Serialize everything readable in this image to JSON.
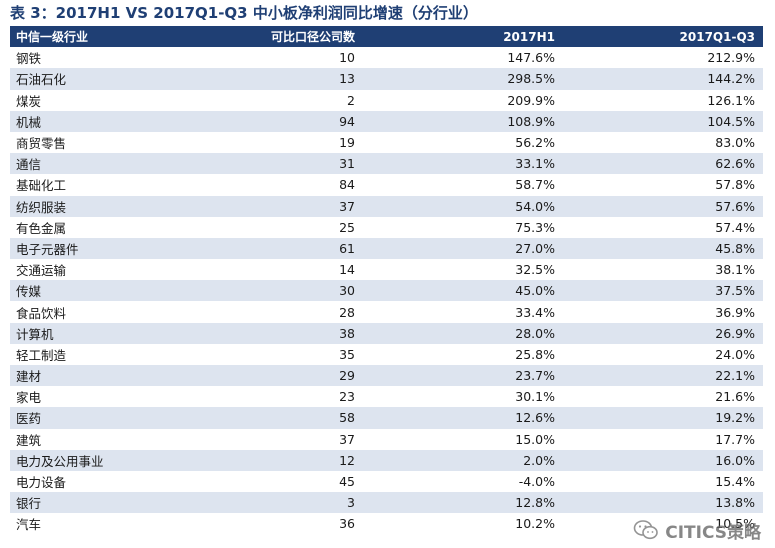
{
  "title": "表 3：2017H1 VS 2017Q1-Q3 中小板净利润同比增速（分行业）",
  "table": {
    "headers": [
      "中信一级行业",
      "可比口径公司数",
      "2017H1",
      "2017Q1-Q3"
    ],
    "rows": [
      [
        "钢铁",
        "10",
        "147.6%",
        "212.9%"
      ],
      [
        "石油石化",
        "13",
        "298.5%",
        "144.2%"
      ],
      [
        "煤炭",
        "2",
        "209.9%",
        "126.1%"
      ],
      [
        "机械",
        "94",
        "108.9%",
        "104.5%"
      ],
      [
        "商贸零售",
        "19",
        "56.2%",
        "83.0%"
      ],
      [
        "通信",
        "31",
        "33.1%",
        "62.6%"
      ],
      [
        "基础化工",
        "84",
        "58.7%",
        "57.8%"
      ],
      [
        "纺织服装",
        "37",
        "54.0%",
        "57.6%"
      ],
      [
        "有色金属",
        "25",
        "75.3%",
        "57.4%"
      ],
      [
        "电子元器件",
        "61",
        "27.0%",
        "45.8%"
      ],
      [
        "交通运输",
        "14",
        "32.5%",
        "38.1%"
      ],
      [
        "传媒",
        "30",
        "45.0%",
        "37.5%"
      ],
      [
        "食品饮料",
        "28",
        "33.4%",
        "36.9%"
      ],
      [
        "计算机",
        "38",
        "28.0%",
        "26.9%"
      ],
      [
        "轻工制造",
        "35",
        "25.8%",
        "24.0%"
      ],
      [
        "建材",
        "29",
        "23.7%",
        "22.1%"
      ],
      [
        "家电",
        "23",
        "30.1%",
        "21.6%"
      ],
      [
        "医药",
        "58",
        "12.6%",
        "19.2%"
      ],
      [
        "建筑",
        "37",
        "15.0%",
        "17.7%"
      ],
      [
        "电力及公用事业",
        "12",
        "2.0%",
        "16.0%"
      ],
      [
        "电力设备",
        "45",
        "-4.0%",
        "15.4%"
      ],
      [
        "银行",
        "3",
        "12.8%",
        "13.8%"
      ],
      [
        "汽车",
        "36",
        "10.2%",
        "10.5%"
      ]
    ]
  },
  "watermark": {
    "text": "CITICS策略",
    "icon": "wechat-icon"
  },
  "colors": {
    "header_bg": "#1f3f74",
    "stripe": "#dde4ef",
    "title": "#1f3f74"
  }
}
